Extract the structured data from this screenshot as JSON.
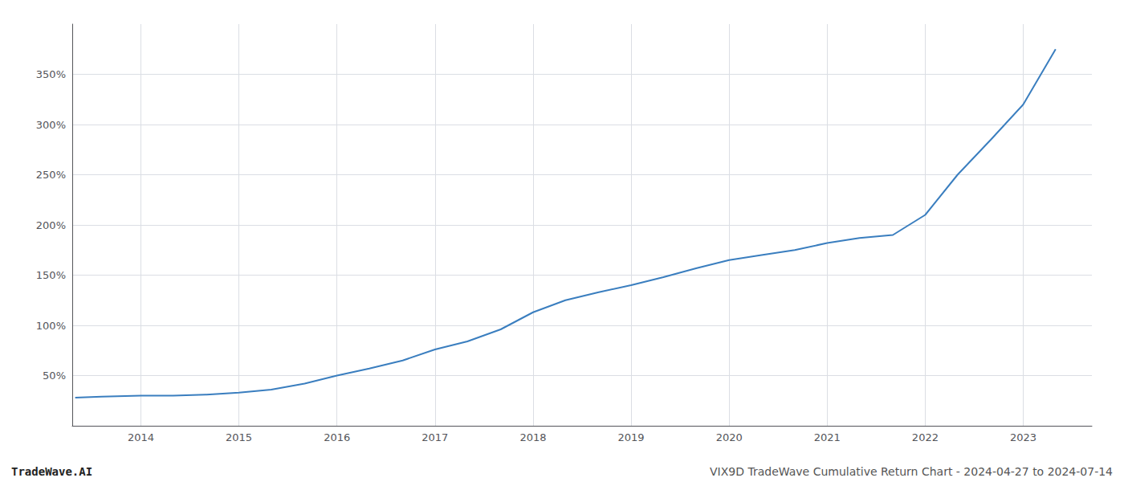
{
  "chart_data": {
    "type": "line",
    "x": [
      2013.33,
      2013.6,
      2014.0,
      2014.33,
      2014.67,
      2015.0,
      2015.33,
      2015.67,
      2016.0,
      2016.33,
      2016.67,
      2017.0,
      2017.33,
      2017.67,
      2018.0,
      2018.33,
      2018.67,
      2019.0,
      2019.33,
      2019.67,
      2020.0,
      2020.33,
      2020.67,
      2021.0,
      2021.33,
      2021.67,
      2022.0,
      2022.33,
      2022.67,
      2023.0,
      2023.33
    ],
    "values": [
      28,
      29,
      30,
      30,
      31,
      33,
      36,
      42,
      50,
      57,
      65,
      76,
      84,
      96,
      113,
      125,
      133,
      140,
      148,
      157,
      165,
      170,
      175,
      182,
      187,
      190,
      210,
      250,
      285,
      320,
      375
    ],
    "color": "#3a7ebf",
    "xlim": [
      2013.3,
      2023.7
    ],
    "ylim": [
      0,
      400
    ],
    "xticks": [
      2014,
      2015,
      2016,
      2017,
      2018,
      2019,
      2020,
      2021,
      2022,
      2023
    ],
    "yticks": [
      {
        "value": 50,
        "label": "50%"
      },
      {
        "value": 100,
        "label": "100%"
      },
      {
        "value": 150,
        "label": "150%"
      },
      {
        "value": 200,
        "label": "200%"
      },
      {
        "value": 250,
        "label": "250%"
      },
      {
        "value": 300,
        "label": "300%"
      },
      {
        "value": 350,
        "label": "350%"
      }
    ],
    "grid": true,
    "annotations": [
      "TradeWave.AI",
      "VIX9D TradeWave Cumulative Return Chart - 2024-04-27 to 2024-07-14"
    ]
  }
}
